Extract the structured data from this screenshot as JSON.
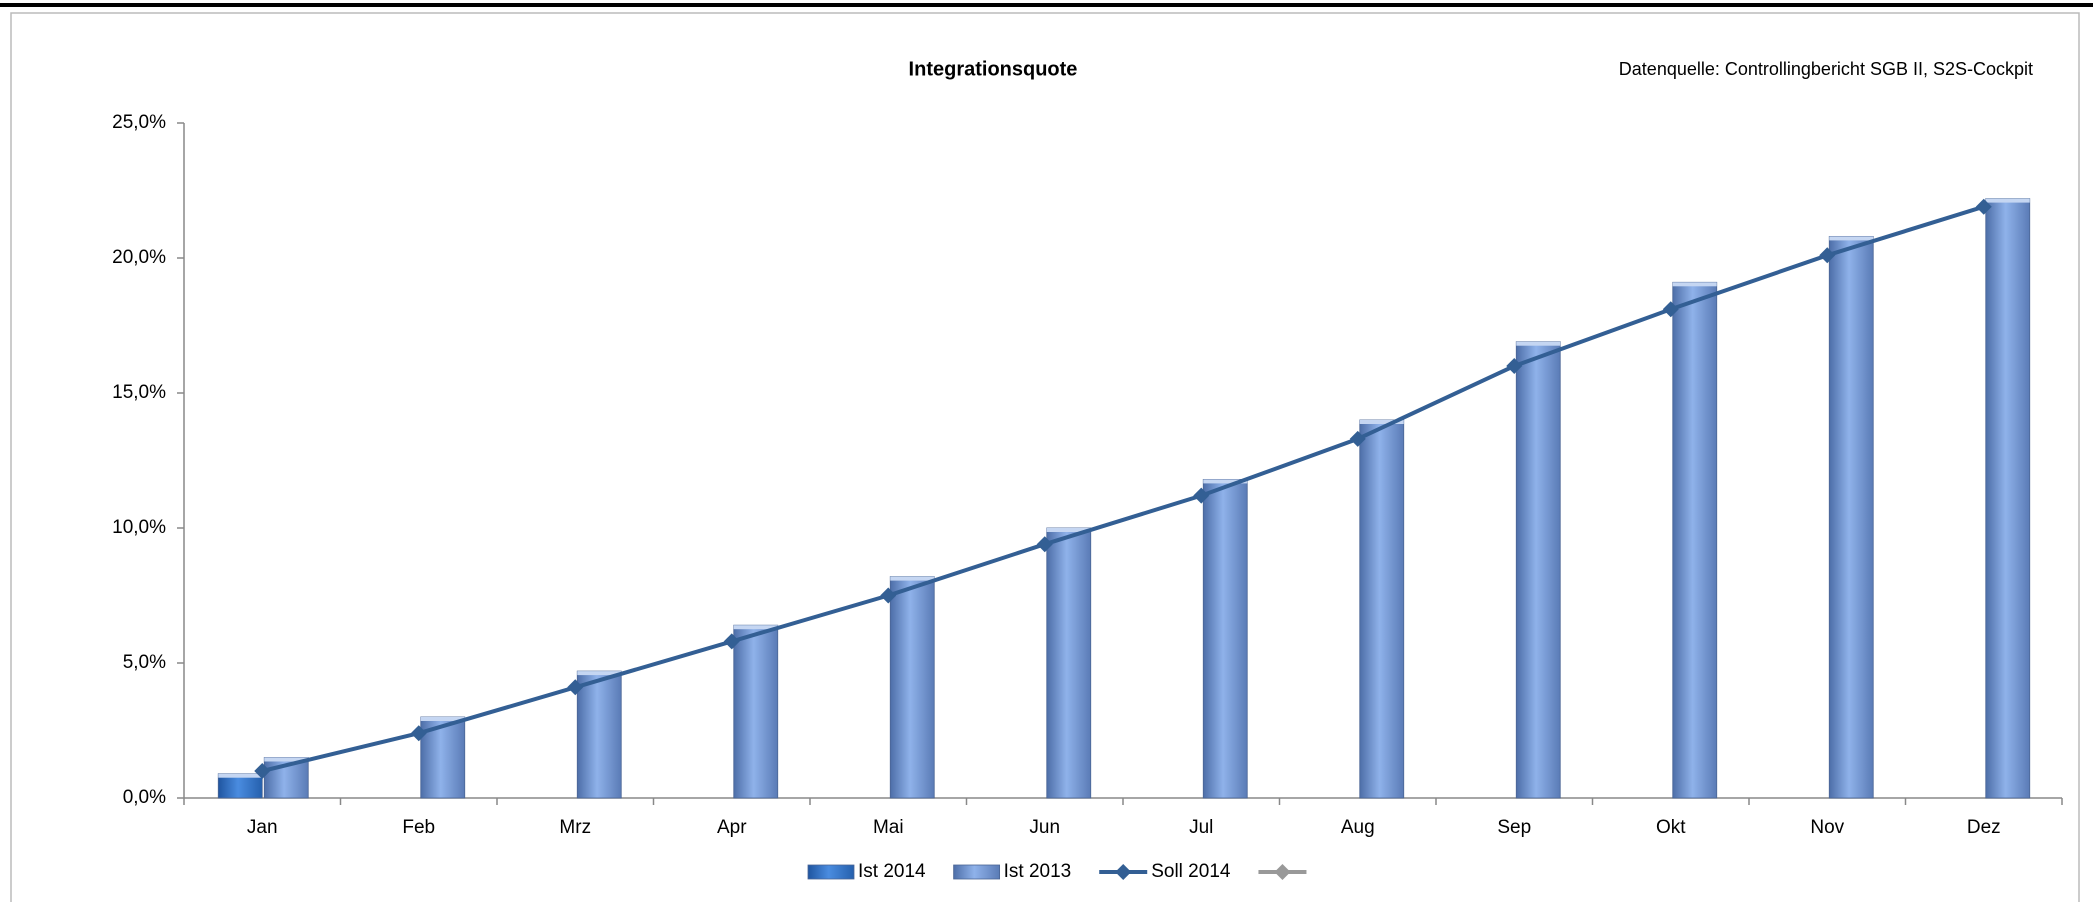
{
  "chart_data": {
    "type": "bar-line",
    "title": "Integrationsquote",
    "source": "Datenquelle: Controllingbericht SGB II, S2S-Cockpit",
    "categories": [
      "Jan",
      "Feb",
      "Mrz",
      "Apr",
      "Mai",
      "Jun",
      "Jul",
      "Aug",
      "Sep",
      "Okt",
      "Nov",
      "Dez"
    ],
    "series": [
      {
        "name": "Ist 2014",
        "kind": "bar",
        "color": "#2f6fc0",
        "values": [
          0.9,
          null,
          null,
          null,
          null,
          null,
          null,
          null,
          null,
          null,
          null,
          null
        ]
      },
      {
        "name": "Ist 2013",
        "kind": "bar",
        "color": "#7f9fd8",
        "values": [
          1.5,
          3.0,
          4.7,
          6.4,
          8.2,
          10.0,
          11.8,
          14.0,
          16.9,
          19.1,
          20.8,
          22.2
        ]
      },
      {
        "name": "Soll 2014",
        "kind": "line",
        "color": "#335f94",
        "values": [
          1.0,
          2.4,
          4.1,
          5.8,
          7.5,
          9.4,
          11.2,
          13.3,
          16.0,
          18.1,
          20.1,
          21.9
        ]
      },
      {
        "name": null,
        "kind": "line",
        "color": "#999999",
        "values": [
          null,
          null,
          null,
          null,
          null,
          null,
          null,
          null,
          null,
          null,
          null,
          null
        ]
      }
    ],
    "ylim": [
      0,
      25
    ],
    "yticks": [
      {
        "value": 0,
        "label": "0,0%"
      },
      {
        "value": 5,
        "label": "5,0%"
      },
      {
        "value": 10,
        "label": "10,0%"
      },
      {
        "value": 15,
        "label": "15,0%"
      },
      {
        "value": 20,
        "label": "20,0%"
      },
      {
        "value": 25,
        "label": "25,0%"
      }
    ]
  }
}
